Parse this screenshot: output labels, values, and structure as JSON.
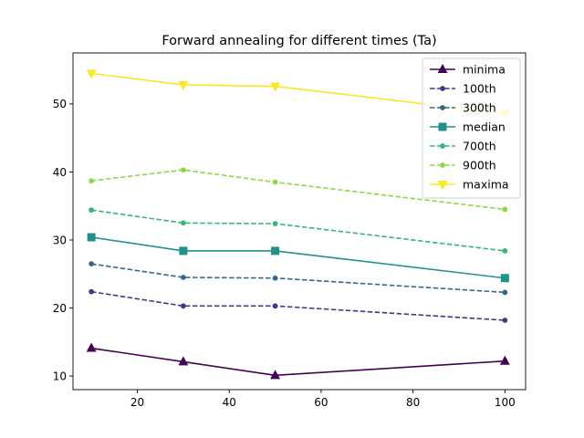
{
  "chart_data": {
    "type": "line",
    "title": "Forward annealing for different times (Ta)",
    "xlabel": "",
    "ylabel": "",
    "x": [
      10,
      30,
      50,
      100
    ],
    "xlim": [
      6,
      104.5
    ],
    "ylim": [
      8,
      57.5
    ],
    "xticks": [
      20,
      40,
      60,
      80,
      100
    ],
    "yticks": [
      10,
      20,
      30,
      40,
      50
    ],
    "grid": false,
    "legend_position": "top-right",
    "series": [
      {
        "name": "minima",
        "values": [
          14.1,
          12.1,
          10.1,
          12.2
        ],
        "color": "#440154",
        "dash": "solid",
        "marker": "triangle-up"
      },
      {
        "name": "100th",
        "values": [
          22.4,
          20.3,
          20.3,
          18.2
        ],
        "color": "#443983",
        "dash": "dashed",
        "marker": "point"
      },
      {
        "name": "300th",
        "values": [
          26.5,
          24.5,
          24.4,
          22.3
        ],
        "color": "#31688e",
        "dash": "dashed",
        "marker": "point"
      },
      {
        "name": "median",
        "values": [
          30.4,
          28.4,
          28.4,
          24.4
        ],
        "color": "#21918c",
        "dash": "solid",
        "marker": "square"
      },
      {
        "name": "700th",
        "values": [
          34.4,
          32.5,
          32.4,
          28.4
        ],
        "color": "#35b779",
        "dash": "dashed",
        "marker": "point"
      },
      {
        "name": "900th",
        "values": [
          38.7,
          40.3,
          38.5,
          34.5
        ],
        "color": "#90d743",
        "dash": "dashed",
        "marker": "point"
      },
      {
        "name": "maxima",
        "values": [
          54.5,
          52.8,
          52.6,
          48.6
        ],
        "color": "#fde725",
        "dash": "solid",
        "marker": "triangle-down"
      }
    ]
  }
}
